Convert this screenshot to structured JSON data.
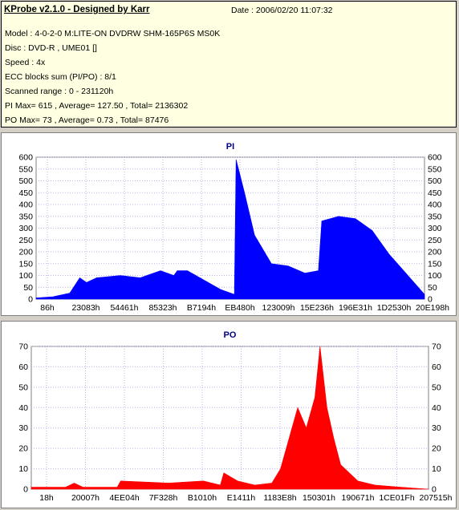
{
  "info": {
    "title": "KProbe v2.1.0 - Designed by Karr",
    "date": "Date : 2006/02/20 11:07:32",
    "lines": [
      "Model : 4-0-2-0 M:LITE-ON DVDRW SHM-165P6S MS0K",
      "Disc : DVD-R , UME01 []",
      "Speed : 4x",
      "ECC blocks sum (PI/PO) : 8/1",
      "Scanned range : 0 - 231120h",
      "PI Max= 615 , Average= 127.50 , Total= 2136302",
      "PO Max= 73 , Average= 0.73 , Total= 87476"
    ]
  },
  "chart_data": [
    {
      "type": "area",
      "title": "PI",
      "color": "#0000ff",
      "ylim": [
        0,
        600
      ],
      "yticks": [
        0,
        50,
        100,
        150,
        200,
        250,
        300,
        350,
        400,
        450,
        500,
        550,
        600
      ],
      "xlim": [
        0,
        231120
      ],
      "xtick_labels": [
        "86h",
        "23083h",
        "54461h",
        "85323h",
        "B7194h",
        "EB480h",
        "123009h",
        "15E236h",
        "196E31h",
        "1D2530h",
        "20E198h"
      ],
      "x": [
        0,
        10000,
        20000,
        26000,
        30000,
        36000,
        50000,
        62000,
        74000,
        82000,
        84000,
        90000,
        100000,
        110000,
        118000,
        119000,
        124000,
        130000,
        140000,
        150000,
        160000,
        168000,
        170000,
        180000,
        190000,
        200000,
        210000,
        220000,
        231120
      ],
      "y": [
        5,
        10,
        25,
        90,
        70,
        90,
        100,
        90,
        120,
        100,
        120,
        120,
        80,
        40,
        20,
        590,
        450,
        270,
        150,
        140,
        110,
        120,
        330,
        350,
        340,
        290,
        190,
        110,
        20
      ]
    },
    {
      "type": "area",
      "title": "PO",
      "color": "#ff0000",
      "ylim": [
        0,
        70
      ],
      "yticks": [
        0,
        10,
        20,
        30,
        40,
        50,
        60,
        70
      ],
      "xlim": [
        0,
        231120
      ],
      "xtick_labels": [
        "18h",
        "20007h",
        "4EE04h",
        "7F328h",
        "B1010h",
        "E1411h",
        "1183E8h",
        "150301h",
        "190671h",
        "1CE01Fh",
        "207515h"
      ],
      "x": [
        0,
        20000,
        25000,
        30000,
        50000,
        52000,
        80000,
        100000,
        110000,
        112000,
        120000,
        130000,
        140000,
        145000,
        150000,
        155000,
        160000,
        165000,
        168000,
        172000,
        176000,
        180000,
        190000,
        200000,
        215000,
        231120
      ],
      "y": [
        1,
        1,
        3,
        1,
        1,
        4,
        3,
        4,
        2,
        8,
        4,
        2,
        3,
        10,
        25,
        40,
        30,
        45,
        70,
        40,
        25,
        12,
        4,
        2,
        1,
        0
      ]
    }
  ]
}
